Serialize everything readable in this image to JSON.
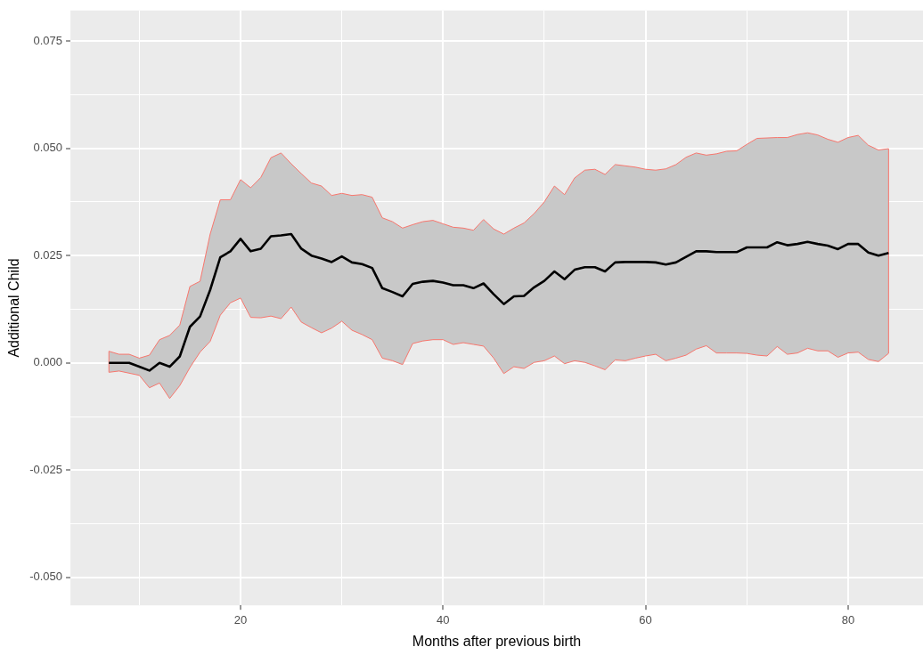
{
  "chart_data": {
    "type": "line",
    "xlabel": "Months after previous birth",
    "ylabel": "Additional Child",
    "x": [
      7,
      8,
      9,
      10,
      11,
      12,
      13,
      14,
      15,
      16,
      17,
      18,
      19,
      20,
      21,
      22,
      23,
      24,
      25,
      26,
      27,
      28,
      29,
      30,
      31,
      32,
      33,
      34,
      35,
      36,
      37,
      38,
      39,
      40,
      41,
      42,
      43,
      44,
      45,
      46,
      47,
      48,
      49,
      50,
      51,
      52,
      53,
      54,
      55,
      56,
      57,
      58,
      59,
      60,
      61,
      62,
      63,
      64,
      65,
      66,
      67,
      68,
      69,
      70,
      71,
      72,
      73,
      74,
      75,
      76,
      77,
      78,
      79,
      80,
      81,
      82,
      83,
      84
    ],
    "series": [
      {
        "color": "#000000",
        "values": [
          0.0,
          0.0,
          0.0,
          -0.0009,
          -0.0018,
          0.0,
          -0.0009,
          0.0015,
          0.0084,
          0.0108,
          0.017,
          0.0246,
          0.026,
          0.0289,
          0.026,
          0.0266,
          0.0295,
          0.0297,
          0.03,
          0.0266,
          0.025,
          0.0243,
          0.0235,
          0.0248,
          0.0234,
          0.023,
          0.0221,
          0.0174,
          0.0165,
          0.0155,
          0.0184,
          0.0189,
          0.0191,
          0.0187,
          0.0181,
          0.0181,
          0.0174,
          0.0185,
          0.016,
          0.0137,
          0.0155,
          0.0156,
          0.0176,
          0.0191,
          0.0213,
          0.0195,
          0.0217,
          0.0223,
          0.0223,
          0.0213,
          0.0234,
          0.0235,
          0.0235,
          0.0235,
          0.0234,
          0.0229,
          0.0234,
          0.0247,
          0.026,
          0.026,
          0.0258,
          0.0258,
          0.0258,
          0.0269,
          0.0269,
          0.0269,
          0.0281,
          0.0274,
          0.0277,
          0.0282,
          0.0277,
          0.0273,
          0.0265,
          0.0277,
          0.0277,
          0.0257,
          0.025,
          0.0256
        ],
        "lower": [
          -0.0022,
          -0.0019,
          -0.0024,
          -0.0029,
          -0.0058,
          -0.0047,
          -0.0083,
          -0.0053,
          -0.0011,
          0.0025,
          0.005,
          0.0111,
          0.014,
          0.0151,
          0.0106,
          0.0105,
          0.0109,
          0.0103,
          0.013,
          0.0095,
          0.0082,
          0.007,
          0.0081,
          0.0097,
          0.0076,
          0.0066,
          0.0054,
          0.0011,
          0.0005,
          -0.0004,
          0.0045,
          0.0051,
          0.0054,
          0.0054,
          0.0043,
          0.0047,
          0.0043,
          0.0039,
          0.0011,
          -0.0025,
          -0.0009,
          -0.0013,
          0.0001,
          0.0005,
          0.0016,
          -0.0002,
          0.0005,
          0.0001,
          -0.0007,
          -0.0016,
          0.0007,
          0.0005,
          0.0011,
          0.0016,
          0.002,
          0.0005,
          0.0011,
          0.0018,
          0.0032,
          0.004,
          0.0023,
          0.0023,
          0.0023,
          0.0022,
          0.0018,
          0.0016,
          0.0038,
          0.002,
          0.0023,
          0.0034,
          0.0028,
          0.0028,
          0.0013,
          0.0023,
          0.0025,
          0.0008,
          0.0003,
          0.0022
        ],
        "upper": [
          0.0027,
          0.002,
          0.002,
          0.0011,
          0.0018,
          0.0054,
          0.0064,
          0.0088,
          0.0178,
          0.019,
          0.03,
          0.038,
          0.038,
          0.0427,
          0.0408,
          0.0432,
          0.0478,
          0.0489,
          0.0464,
          0.0441,
          0.0419,
          0.0412,
          0.039,
          0.0395,
          0.039,
          0.0392,
          0.0386,
          0.0338,
          0.0329,
          0.0314,
          0.0322,
          0.0329,
          0.0332,
          0.0324,
          0.0316,
          0.0314,
          0.0309,
          0.0334,
          0.0312,
          0.03,
          0.0314,
          0.0326,
          0.0348,
          0.0375,
          0.0412,
          0.0392,
          0.0431,
          0.0449,
          0.0451,
          0.0439,
          0.0462,
          0.0459,
          0.0456,
          0.0451,
          0.0449,
          0.0452,
          0.0462,
          0.0479,
          0.0489,
          0.0484,
          0.0487,
          0.0493,
          0.0494,
          0.0509,
          0.0523,
          0.0524,
          0.0525,
          0.0525,
          0.0532,
          0.0536,
          0.0531,
          0.0521,
          0.0514,
          0.0525,
          0.053,
          0.0507,
          0.0496,
          0.0499
        ]
      }
    ],
    "xlim": [
      3.2,
      87.4
    ],
    "xticks": [
      {
        "value": 10,
        "label": null
      },
      20,
      {
        "value": 30,
        "label": null
      },
      40,
      {
        "value": 50,
        "label": null
      },
      60,
      {
        "value": 70,
        "label": null
      },
      80
    ],
    "ylim": [
      -0.0565,
      0.0821
    ],
    "yticks": [
      {
        "value": -0.05,
        "label": "-0.050"
      },
      {
        "value": -0.0375,
        "label": null
      },
      {
        "value": -0.025,
        "label": "-0.025"
      },
      {
        "value": -0.0125,
        "label": null
      },
      {
        "value": 0,
        "label": "0.000"
      },
      {
        "value": 0.0125,
        "label": null
      },
      {
        "value": 0.025,
        "label": "0.025"
      },
      {
        "value": 0.0375,
        "label": null
      },
      {
        "value": 0.05,
        "label": "0.050"
      },
      {
        "value": 0.0625,
        "label": null
      },
      {
        "value": 0.075,
        "label": "0.075"
      }
    ],
    "grid": true
  }
}
